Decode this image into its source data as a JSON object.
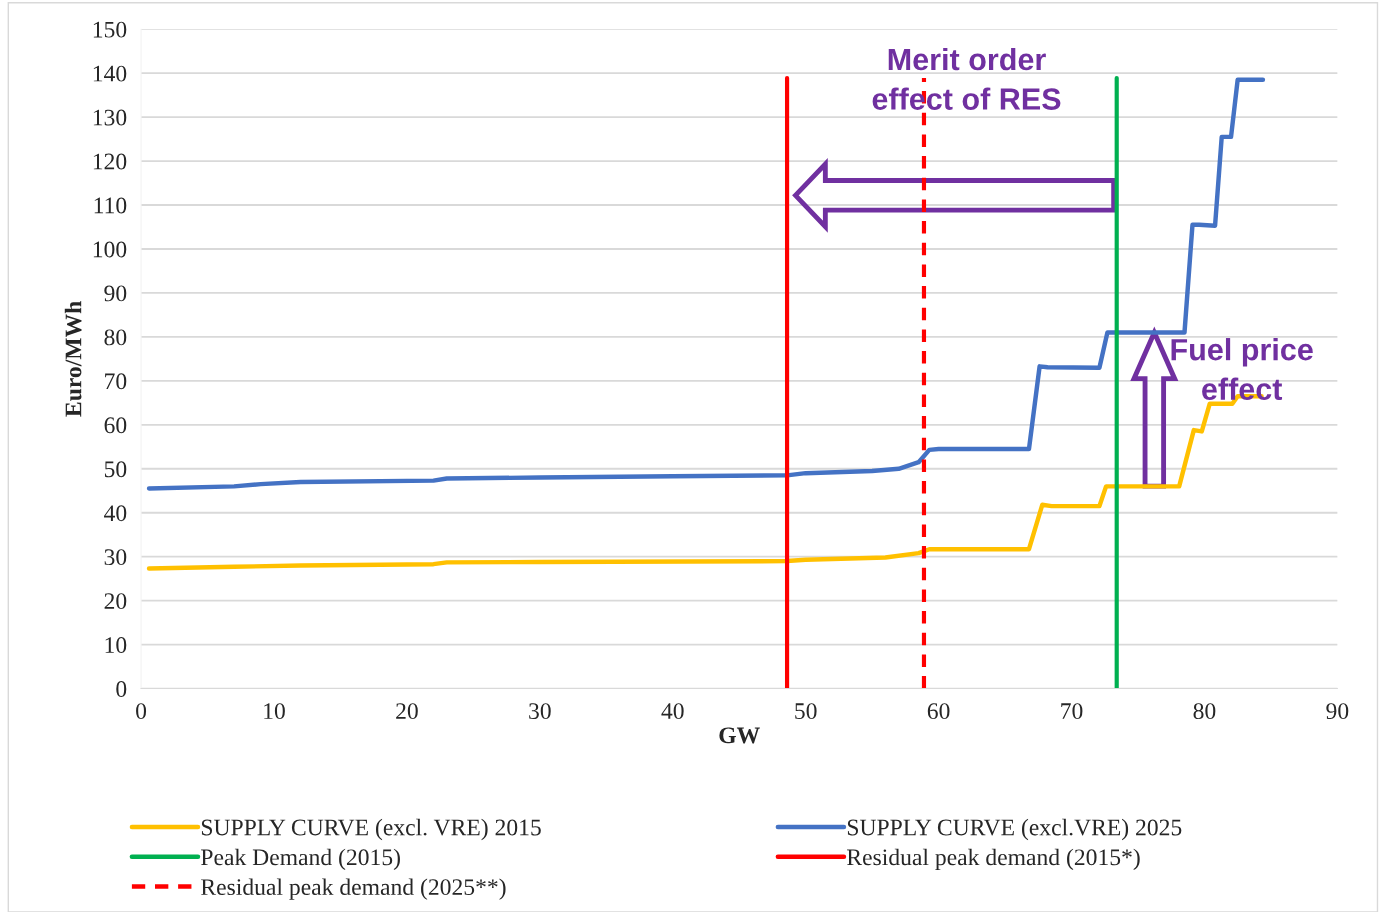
{
  "chart_data": {
    "type": "line",
    "xlabel": "GW",
    "ylabel": "Euro/MWh",
    "xlim": [
      0,
      90
    ],
    "xticks": [
      0,
      10,
      20,
      30,
      40,
      50,
      60,
      70,
      80,
      90
    ],
    "ylim": [
      0,
      150
    ],
    "yticks": [
      0,
      10,
      20,
      30,
      40,
      50,
      60,
      70,
      80,
      90,
      100,
      110,
      120,
      130,
      140,
      150
    ],
    "grid": "y",
    "legend": "bottom",
    "marker": "none",
    "line_style": "solid",
    "series": [
      {
        "name": "SUPPLY CURVE (excl. VRE) 2015",
        "color": "#ffc000",
        "x": [
          0.6,
          7,
          12,
          22,
          23,
          30,
          48.6,
          50,
          56,
          58.5,
          59.3,
          66.8,
          67.8,
          68.5,
          72.1,
          72.6,
          78.1,
          79.2,
          79.8,
          80.4,
          82.1,
          82.5,
          84.3
        ],
        "values": [
          27.3,
          27.7,
          28,
          28.3,
          28.7,
          28.8,
          29,
          29.3,
          29.8,
          30.8,
          31.7,
          31.7,
          41.8,
          41.5,
          41.5,
          46,
          46,
          58.8,
          58.5,
          64.8,
          64.8,
          66.5,
          66.5
        ]
      },
      {
        "name": "SUPPLY CURVE (excl.VRE) 2025",
        "color": "#4472c4",
        "x": [
          0.6,
          7,
          9,
          12,
          22,
          23,
          30,
          40,
          48.6,
          50,
          55,
          57,
          58.5,
          59.3,
          60,
          66.8,
          67.6,
          68.2,
          72.1,
          72.7,
          78.5,
          79.1,
          79.6,
          80.8,
          81.3,
          82.0,
          82.5,
          84.4
        ],
        "values": [
          45.5,
          46,
          46.5,
          47,
          47.3,
          47.8,
          48,
          48.3,
          48.5,
          49,
          49.5,
          50,
          51.5,
          54.3,
          54.5,
          54.5,
          73.3,
          73.1,
          73,
          81,
          81,
          105.5,
          105.5,
          105.3,
          125.5,
          125.5,
          138.5,
          138.5
        ]
      }
    ],
    "ref_lines": [
      {
        "axis": "x",
        "value": 73.4,
        "label": "Peak Demand (2015)",
        "color": "#00b050",
        "line_style": "solid"
      },
      {
        "axis": "x",
        "value": 48.6,
        "label": "Residual peak demand (2015*)",
        "color": "#ff0000",
        "line_style": "solid"
      },
      {
        "axis": "x",
        "value": 58.9,
        "label": "Residual peak demand (2025**)",
        "color": "#ff0000",
        "line_style": "dashed"
      }
    ],
    "annotations": [
      "Merit order\neffect of RES",
      "Fuel price\neffect"
    ]
  }
}
